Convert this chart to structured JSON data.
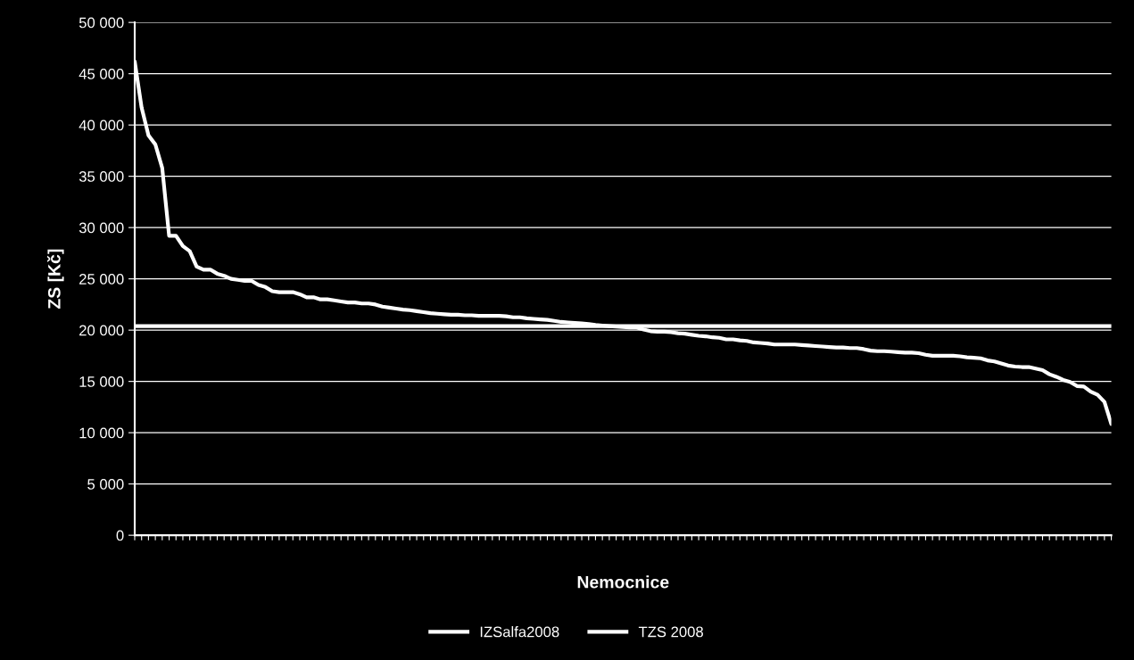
{
  "chart_data": {
    "type": "line",
    "xlabel": "Nemocnice",
    "ylabel": "ZS [Kč]",
    "categories": [
      null,
      null,
      null,
      null,
      null,
      null,
      null,
      null,
      null,
      null,
      null,
      null,
      null,
      null,
      null,
      null,
      null,
      null,
      null,
      null,
      null,
      null,
      null,
      null,
      null,
      null,
      null,
      null,
      null,
      null,
      null,
      null,
      null,
      null,
      null,
      null,
      null,
      null,
      null,
      null,
      null,
      null,
      null,
      null,
      null,
      null,
      null,
      null,
      null,
      null,
      null,
      null,
      null,
      null,
      null,
      null,
      null,
      null,
      null,
      null,
      null,
      null,
      null,
      null,
      null,
      null,
      null,
      null,
      null,
      null,
      null,
      null,
      null,
      null,
      null,
      null,
      null,
      null,
      null,
      null,
      null,
      null,
      null,
      null,
      null,
      null,
      null,
      null,
      null,
      null,
      null,
      null,
      null,
      null,
      null,
      null,
      null,
      null,
      null,
      null,
      null,
      null,
      null,
      null,
      null,
      null,
      null,
      null,
      null,
      null,
      null,
      null,
      null,
      null,
      null,
      null,
      null,
      null,
      null,
      null,
      null,
      null,
      null,
      null,
      null,
      null,
      null,
      null,
      null,
      null,
      null,
      null,
      null,
      null,
      null,
      null,
      null,
      null,
      null,
      null,
      null,
      null,
      null
    ],
    "series": [
      {
        "name": "IZSalfa2008",
        "color": "#ffffff",
        "values": [
          46200,
          41700,
          39000,
          38100,
          35800,
          29200,
          29200,
          28200,
          27700,
          26200,
          25900,
          25900,
          25500,
          25300,
          25000,
          24900,
          24800,
          24800,
          24400,
          24200,
          23800,
          23700,
          23700,
          23700,
          23500,
          23200,
          23200,
          23000,
          23000,
          22900,
          22800,
          22700,
          22700,
          22600,
          22600,
          22500,
          22300,
          22200,
          22100,
          22000,
          21950,
          21850,
          21750,
          21650,
          21600,
          21550,
          21500,
          21500,
          21450,
          21450,
          21400,
          21400,
          21400,
          21400,
          21350,
          21250,
          21250,
          21150,
          21100,
          21050,
          21000,
          20900,
          20800,
          20750,
          20700,
          20650,
          20600,
          20500,
          20450,
          20400,
          20350,
          20300,
          20250,
          20250,
          20050,
          19900,
          19850,
          19850,
          19800,
          19700,
          19650,
          19550,
          19450,
          19400,
          19300,
          19250,
          19100,
          19100,
          19000,
          18950,
          18800,
          18750,
          18700,
          18600,
          18600,
          18600,
          18600,
          18550,
          18500,
          18450,
          18400,
          18350,
          18300,
          18300,
          18250,
          18250,
          18150,
          18000,
          17950,
          17950,
          17900,
          17850,
          17800,
          17800,
          17750,
          17600,
          17500,
          17500,
          17500,
          17500,
          17450,
          17350,
          17300,
          17250,
          17050,
          16950,
          16750,
          16550,
          16450,
          16400,
          16400,
          16250,
          16100,
          15700,
          15450,
          15150,
          14950,
          14550,
          14500,
          14000,
          13700,
          13000,
          10850
        ]
      },
      {
        "name": "TZS 2008",
        "color": "#ffffff",
        "values": [
          20400,
          20400,
          20400,
          20400,
          20400,
          20400,
          20400,
          20400,
          20400,
          20400,
          20400,
          20400,
          20400,
          20400,
          20400,
          20400,
          20400,
          20400,
          20400,
          20400,
          20400,
          20400,
          20400,
          20400,
          20400,
          20400,
          20400,
          20400,
          20400,
          20400,
          20400,
          20400,
          20400,
          20400,
          20400,
          20400,
          20400,
          20400,
          20400,
          20400,
          20400,
          20400,
          20400,
          20400,
          20400,
          20400,
          20400,
          20400,
          20400,
          20400,
          20400,
          20400,
          20400,
          20400,
          20400,
          20400,
          20400,
          20400,
          20400,
          20400,
          20400,
          20400,
          20400,
          20400,
          20400,
          20400,
          20400,
          20400,
          20400,
          20400,
          20400,
          20400,
          20400,
          20400,
          20400,
          20400,
          20400,
          20400,
          20400,
          20400,
          20400,
          20400,
          20400,
          20400,
          20400,
          20400,
          20400,
          20400,
          20400,
          20400,
          20400,
          20400,
          20400,
          20400,
          20400,
          20400,
          20400,
          20400,
          20400,
          20400,
          20400,
          20400,
          20400,
          20400,
          20400,
          20400,
          20400,
          20400,
          20400,
          20400,
          20400,
          20400,
          20400,
          20400,
          20400,
          20400,
          20400,
          20400,
          20400,
          20400,
          20400,
          20400,
          20400,
          20400,
          20400,
          20400,
          20400,
          20400,
          20400,
          20400,
          20400,
          20400,
          20400,
          20400,
          20400,
          20400,
          20400,
          20400,
          20400,
          20400,
          20400,
          20400,
          20400
        ]
      }
    ],
    "ylim": [
      0,
      50000
    ],
    "yticks": [
      {
        "value": 0,
        "label": "0"
      },
      {
        "value": 5000,
        "label": "5 000"
      },
      {
        "value": 10000,
        "label": "10 000"
      },
      {
        "value": 15000,
        "label": "15 000"
      },
      {
        "value": 20000,
        "label": "20 000"
      },
      {
        "value": 25000,
        "label": "25 000"
      },
      {
        "value": 30000,
        "label": "30 000"
      },
      {
        "value": 35000,
        "label": "35 000"
      },
      {
        "value": 40000,
        "label": "40 000"
      },
      {
        "value": 45000,
        "label": "45 000"
      },
      {
        "value": 50000,
        "label": "50 000"
      }
    ],
    "grid": "y",
    "legend": "bottom",
    "marker": "none",
    "line_style": "solid"
  }
}
